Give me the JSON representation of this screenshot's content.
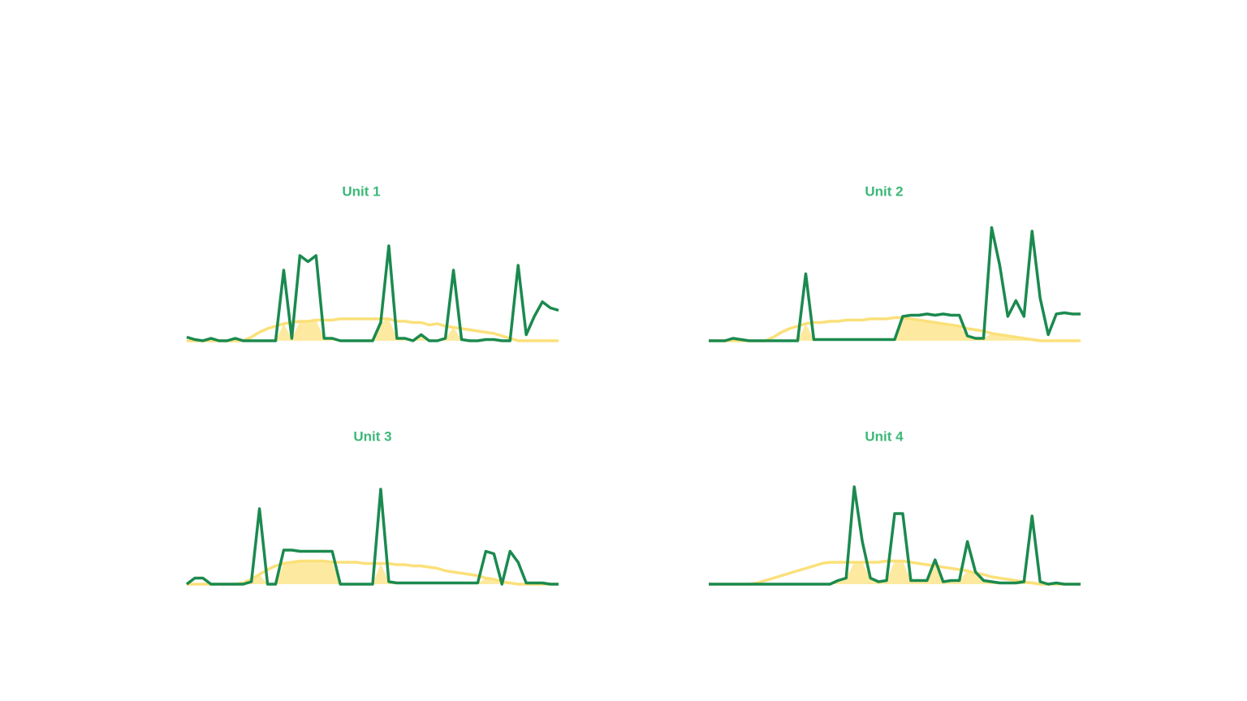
{
  "chart_data": [
    {
      "type": "line",
      "title": "Unit 1",
      "ylim": [
        0,
        100
      ],
      "series": [
        {
          "color": "#fbe07a",
          "values": [
            0,
            0,
            0,
            0,
            0,
            0,
            0,
            0,
            3,
            7,
            10,
            12,
            14,
            15,
            16,
            16,
            17,
            17,
            17,
            18,
            18,
            18,
            18,
            18,
            18,
            18,
            16,
            16,
            15,
            15,
            13,
            14,
            12,
            11,
            10,
            9,
            8,
            7,
            6,
            4,
            2,
            0,
            0,
            0,
            0,
            0,
            0
          ]
        },
        {
          "color": "#1b8a4f",
          "values": [
            3,
            1,
            0,
            2,
            0,
            0,
            2,
            0,
            0,
            0,
            0,
            0,
            58,
            2,
            70,
            65,
            70,
            2,
            2,
            0,
            0,
            0,
            0,
            0,
            15,
            78,
            2,
            2,
            0,
            5,
            0,
            0,
            2,
            58,
            1,
            0,
            0,
            1,
            1,
            0,
            0,
            62,
            5,
            20,
            32,
            27,
            25
          ]
        }
      ]
    },
    {
      "type": "line",
      "title": "Unit 2",
      "ylim": [
        0,
        100
      ],
      "series": [
        {
          "color": "#fbe07a",
          "values": [
            0,
            0,
            0,
            0,
            0,
            0,
            0,
            0,
            3,
            7,
            10,
            12,
            14,
            15,
            15,
            16,
            16,
            17,
            17,
            17,
            18,
            18,
            18,
            19,
            19,
            18,
            17,
            16,
            15,
            14,
            13,
            12,
            10,
            9,
            8,
            6,
            5,
            4,
            3,
            2,
            1,
            0,
            0,
            0,
            0,
            0,
            0
          ]
        },
        {
          "color": "#1b8a4f",
          "values": [
            0,
            0,
            0,
            2,
            1,
            0,
            0,
            0,
            0,
            0,
            0,
            0,
            55,
            1,
            1,
            1,
            1,
            1,
            1,
            1,
            1,
            1,
            1,
            1,
            20,
            21,
            21,
            22,
            21,
            22,
            21,
            21,
            4,
            2,
            2,
            93,
            62,
            20,
            33,
            20,
            90,
            35,
            5,
            22,
            23,
            22,
            22
          ]
        }
      ]
    },
    {
      "type": "line",
      "title": "Unit 3",
      "ylim": [
        0,
        100
      ],
      "series": [
        {
          "color": "#fbe07a",
          "values": [
            0,
            0,
            0,
            0,
            0,
            0,
            0,
            1,
            4,
            8,
            12,
            15,
            17,
            18,
            19,
            19,
            19,
            19,
            18,
            18,
            18,
            18,
            17,
            17,
            17,
            17,
            16,
            16,
            15,
            15,
            14,
            13,
            11,
            10,
            9,
            8,
            7,
            5,
            4,
            2,
            1,
            0,
            0,
            0,
            0,
            0,
            0
          ]
        },
        {
          "color": "#1b8a4f",
          "values": [
            0,
            5,
            5,
            0,
            0,
            0,
            0,
            0,
            2,
            62,
            0,
            0,
            28,
            28,
            27,
            27,
            27,
            27,
            27,
            0,
            0,
            0,
            0,
            0,
            78,
            2,
            1,
            1,
            1,
            1,
            1,
            1,
            1,
            1,
            1,
            1,
            1,
            27,
            25,
            0,
            27,
            18,
            1,
            1,
            1,
            0,
            0
          ]
        }
      ]
    },
    {
      "type": "line",
      "title": "Unit 4",
      "ylim": [
        0,
        100
      ],
      "series": [
        {
          "color": "#fbe07a",
          "values": [
            0,
            0,
            0,
            0,
            0,
            0,
            1,
            3,
            5,
            7,
            9,
            11,
            13,
            15,
            17,
            18,
            18,
            18,
            18,
            18,
            18,
            18,
            19,
            19,
            19,
            18,
            17,
            16,
            15,
            14,
            13,
            12,
            11,
            9,
            8,
            6,
            5,
            4,
            3,
            2,
            1,
            0,
            0,
            0,
            0,
            0,
            0
          ]
        },
        {
          "color": "#1b8a4f",
          "values": [
            0,
            0,
            0,
            0,
            0,
            0,
            0,
            0,
            0,
            0,
            0,
            0,
            0,
            0,
            0,
            0,
            3,
            5,
            80,
            35,
            5,
            2,
            3,
            58,
            58,
            3,
            3,
            3,
            20,
            2,
            3,
            3,
            35,
            10,
            3,
            2,
            1,
            1,
            1,
            2,
            56,
            2,
            0,
            1,
            0,
            0,
            0
          ]
        }
      ]
    }
  ]
}
